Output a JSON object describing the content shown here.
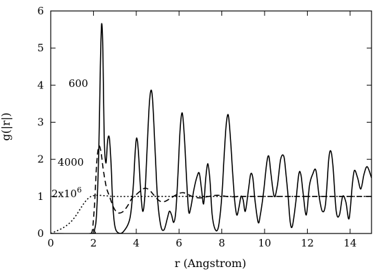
{
  "chart_data": {
    "type": "line",
    "title": "",
    "xlabel": "r (Angstrom)",
    "ylabel": "g(|r|)",
    "xlim": [
      0,
      15
    ],
    "ylim": [
      0,
      6
    ],
    "xticks": [
      "0",
      "2",
      "4",
      "6",
      "8",
      "10",
      "12",
      "14"
    ],
    "yticks": [
      "0",
      "1",
      "2",
      "3",
      "4",
      "5",
      "6"
    ],
    "grid": false,
    "legend": "none",
    "annotations": [
      {
        "text": "600",
        "x": 1.75,
        "y": 3.95
      },
      {
        "text": "4000",
        "x": 1.55,
        "y": 1.83
      },
      {
        "text": "2x10",
        "sup": "6",
        "x": 1.45,
        "y": 0.98
      }
    ],
    "series": [
      {
        "label_ref": "600",
        "style": "solid",
        "x": [
          0,
          1.9,
          2.05,
          2.15,
          2.25,
          2.32,
          2.38,
          2.44,
          2.5,
          2.58,
          2.66,
          2.74,
          2.82,
          2.9,
          3.0,
          3.15,
          3.4,
          3.7,
          3.85,
          3.95,
          4.02,
          4.1,
          4.2,
          4.3,
          4.4,
          4.5,
          4.6,
          4.68,
          4.75,
          4.82,
          4.9,
          5.0,
          5.15,
          5.3,
          5.45,
          5.55,
          5.65,
          5.75,
          5.85,
          5.95,
          6.05,
          6.15,
          6.25,
          6.35,
          6.45,
          6.55,
          6.7,
          6.85,
          6.95,
          7.05,
          7.15,
          7.25,
          7.35,
          7.45,
          7.55,
          7.7,
          7.85,
          8.0,
          8.1,
          8.2,
          8.3,
          8.4,
          8.5,
          8.6,
          8.7,
          8.8,
          8.9,
          9.0,
          9.1,
          9.25,
          9.35,
          9.45,
          9.55,
          9.7,
          9.8,
          9.95,
          10.1,
          10.2,
          10.3,
          10.45,
          10.6,
          10.75,
          10.9,
          11.0,
          11.1,
          11.2,
          11.3,
          11.45,
          11.6,
          11.7,
          11.8,
          11.95,
          12.1,
          12.25,
          12.4,
          12.55,
          12.7,
          12.85,
          13.0,
          13.1,
          13.2,
          13.35,
          13.5,
          13.65,
          13.8,
          13.95,
          14.1,
          14.2,
          14.35,
          14.5,
          14.65,
          14.8,
          15.0
        ],
        "y": [
          0,
          0,
          0.1,
          0.6,
          2.3,
          4.5,
          5.65,
          4.9,
          2.6,
          1.9,
          2.5,
          2.58,
          1.9,
          0.8,
          0.2,
          0.02,
          0.05,
          0.4,
          1.2,
          2.2,
          2.58,
          2.2,
          1.2,
          0.6,
          1.0,
          2.2,
          3.4,
          3.85,
          3.7,
          3.0,
          2.0,
          0.9,
          0.2,
          0.1,
          0.4,
          0.6,
          0.5,
          0.3,
          0.6,
          1.6,
          2.8,
          3.25,
          2.6,
          1.5,
          0.6,
          0.7,
          1.2,
          1.55,
          1.62,
          1.2,
          0.8,
          1.5,
          1.88,
          1.4,
          0.5,
          0.1,
          0.2,
          1.0,
          2.0,
          2.9,
          3.2,
          2.6,
          1.7,
          0.9,
          0.5,
          0.7,
          1.0,
          0.9,
          0.6,
          1.2,
          1.6,
          1.5,
          0.9,
          0.3,
          0.5,
          1.1,
          1.9,
          2.08,
          1.6,
          1.0,
          1.3,
          2.0,
          2.08,
          1.6,
          1.0,
          0.3,
          0.2,
          0.8,
          1.6,
          1.58,
          1.1,
          0.5,
          1.3,
          1.6,
          1.7,
          1.0,
          0.6,
          0.8,
          2.0,
          2.22,
          1.8,
          0.6,
          0.5,
          1.0,
          0.85,
          0.4,
          1.3,
          1.7,
          1.5,
          1.2,
          1.6,
          1.8,
          1.5
        ]
      },
      {
        "label_ref": "4000",
        "style": "dashed",
        "x": [
          1.85,
          1.95,
          2.05,
          2.15,
          2.25,
          2.35,
          2.45,
          2.6,
          2.75,
          2.9,
          3.05,
          3.2,
          3.4,
          3.6,
          3.8,
          4.0,
          4.2,
          4.4,
          4.6,
          4.8,
          5.0,
          5.2,
          5.4,
          5.6,
          5.8,
          6.0,
          6.2,
          6.4,
          6.6,
          6.8,
          7.0,
          7.2,
          7.4,
          7.6,
          7.8,
          8.0,
          8.2,
          8.5,
          9.0,
          9.5,
          10.0,
          10.5,
          11.0,
          12.0,
          13.0,
          14.0,
          15.0
        ],
        "y": [
          0.0,
          0.1,
          0.8,
          1.9,
          2.35,
          2.2,
          1.75,
          1.25,
          1.0,
          0.75,
          0.6,
          0.55,
          0.6,
          0.75,
          0.95,
          1.05,
          1.15,
          1.22,
          1.18,
          1.05,
          0.92,
          0.85,
          0.88,
          0.95,
          1.02,
          1.08,
          1.1,
          1.06,
          1.0,
          0.97,
          0.96,
          0.98,
          1.0,
          1.02,
          1.03,
          1.02,
          1.0,
          0.99,
          1.0,
          1.0,
          1.0,
          1.0,
          1.0,
          1.0,
          1.0,
          1.0,
          1.0
        ]
      },
      {
        "label_ref": "2x10^6",
        "style": "dotted",
        "x": [
          0,
          0.2,
          0.4,
          0.6,
          0.8,
          1.0,
          1.2,
          1.4,
          1.6,
          1.8,
          2.0,
          2.2,
          2.5,
          3.0,
          4.0,
          5.0,
          6.0,
          7.0,
          8.0,
          9.0,
          10.0,
          11.0,
          12.0,
          13.0,
          14.0,
          15.0
        ],
        "y": [
          0.0,
          0.05,
          0.1,
          0.16,
          0.24,
          0.35,
          0.5,
          0.68,
          0.85,
          0.97,
          1.02,
          1.03,
          1.02,
          1.0,
          1.0,
          1.0,
          1.0,
          1.0,
          1.0,
          1.0,
          1.0,
          1.0,
          1.0,
          1.0,
          1.0,
          1.0
        ]
      }
    ]
  }
}
